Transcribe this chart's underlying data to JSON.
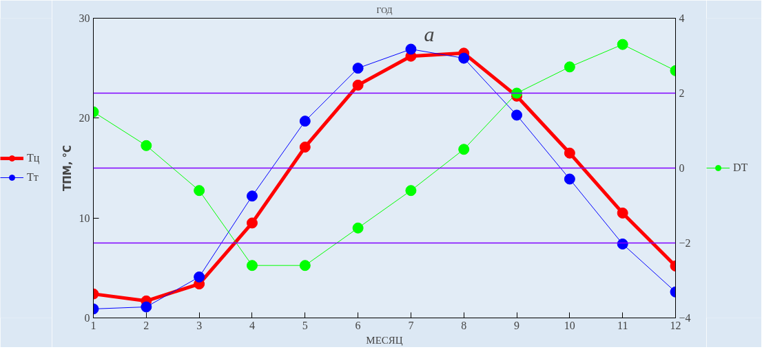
{
  "chart_data": {
    "type": "line",
    "title": "ГОД",
    "xlabel": "МЕСЯЦ",
    "ylabel": "ТПМ, °С",
    "x": [
      1,
      2,
      3,
      4,
      5,
      6,
      7,
      8,
      9,
      10,
      11,
      12
    ],
    "series": [
      {
        "name": "Тц",
        "color": "#ff0000",
        "values": [
          2.4,
          1.7,
          3.4,
          9.5,
          17.1,
          23.3,
          26.2,
          26.5,
          22.2,
          16.5,
          10.5,
          5.2
        ]
      },
      {
        "name": "Тт",
        "color": "#0000ff",
        "values": [
          0.9,
          1.1,
          4.1,
          12.2,
          19.7,
          25.0,
          26.9,
          26.0,
          20.3,
          13.9,
          7.4,
          2.6
        ]
      },
      {
        "name": "DT",
        "color": "#00ff00",
        "axis": "y2",
        "values": [
          1.5,
          0.6,
          -0.6,
          -2.6,
          -2.6,
          -1.6,
          -0.6,
          0.5,
          2.0,
          2.7,
          3.3,
          2.6
        ]
      }
    ],
    "xlim": [
      1,
      12
    ],
    "xticks": [
      1,
      2,
      3,
      4,
      5,
      6,
      7,
      8,
      9,
      10,
      11,
      12
    ],
    "ylim": [
      0,
      30
    ],
    "yticks": [
      0,
      10,
      20,
      30
    ],
    "y2lim": [
      -4,
      4
    ],
    "y2ticks": [
      {
        "value": -4,
        "label": "−4"
      },
      {
        "value": -2,
        "label": "−2"
      },
      0,
      2,
      4
    ],
    "ref_lines": [
      {
        "axis": "y2",
        "value": 2,
        "color": "#8000ff"
      },
      {
        "axis": "y2",
        "value": 0,
        "color": "#8000ff"
      },
      {
        "axis": "y2",
        "value": -2,
        "color": "#8000ff"
      }
    ],
    "annotations": [
      "а"
    ],
    "marker": "circle",
    "legend": "left"
  }
}
